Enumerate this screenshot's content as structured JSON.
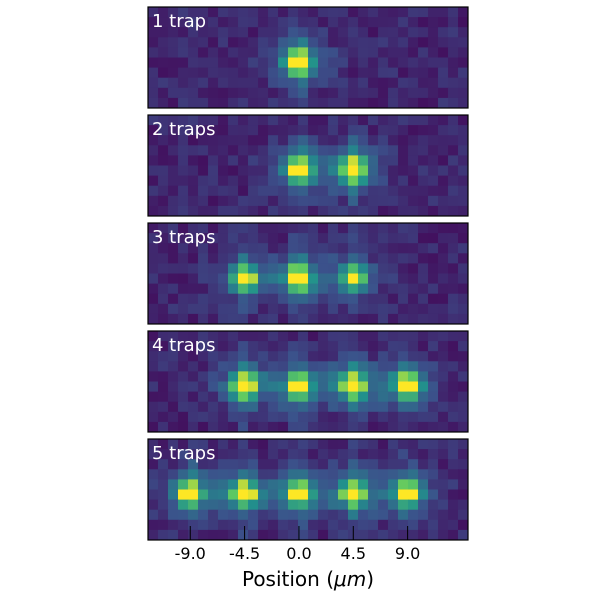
{
  "chart_data": {
    "type": "heatmap",
    "title": "",
    "xlabel_prefix": "Position (",
    "xlabel_unit": "μm",
    "xlabel_suffix": ")",
    "ylabel": "",
    "xlim": [
      -12.5,
      14.0
    ],
    "xticks": [
      -9.0,
      -4.5,
      0.0,
      4.5,
      9.0
    ],
    "xtick_labels": [
      "-9.0",
      "-4.5",
      "0.0",
      "4.5",
      "9.0"
    ],
    "colormap": "viridis",
    "colormap_colors": [
      "#440154",
      "#3b528b",
      "#21918c",
      "#5ec962",
      "#fde725"
    ],
    "panels": [
      {
        "label": "1 trap",
        "trap_positions": [
          0.0
        ],
        "peak_intensities": [
          1.0
        ]
      },
      {
        "label": "2 traps",
        "trap_positions": [
          0.0,
          4.5
        ],
        "peak_intensities": [
          0.95,
          0.95
        ]
      },
      {
        "label": "3 traps",
        "trap_positions": [
          -4.5,
          0.0,
          4.5
        ],
        "peak_intensities": [
          0.8,
          0.95,
          0.7
        ]
      },
      {
        "label": "4 traps",
        "trap_positions": [
          -4.5,
          0.0,
          4.5,
          9.0
        ],
        "peak_intensities": [
          0.95,
          0.9,
          0.95,
          0.95
        ]
      },
      {
        "label": "5 traps",
        "trap_positions": [
          -9.0,
          -4.5,
          0.0,
          4.5,
          9.0
        ],
        "peak_intensities": [
          0.9,
          0.9,
          0.85,
          0.9,
          0.85
        ]
      }
    ]
  }
}
